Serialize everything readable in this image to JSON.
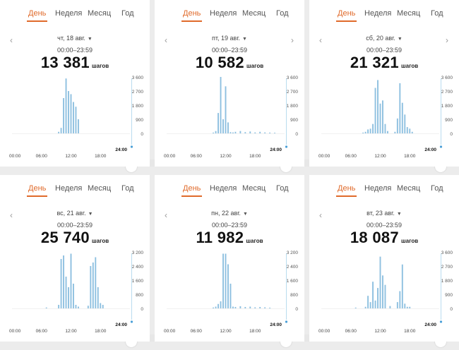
{
  "tabs": [
    "День",
    "Неделя",
    "Месяц",
    "Год"
  ],
  "active_tab": "День",
  "time_range": "00:00–23:59",
  "steps_unit": "шагов",
  "end_time_label": "24:00",
  "colors": {
    "accent": "#e06a2a",
    "bar": "#8ec0e0",
    "axis_line": "#b9dcef"
  },
  "icons": {
    "prev": "chevron-left-icon",
    "next": "chevron-right-icon",
    "dropdown": "caret-down-icon"
  },
  "panels": [
    {
      "date": "чт, 18 авг.",
      "steps": "13 381",
      "show_next": false,
      "chart_data": {
        "type": "bar",
        "x_tick_labels": [
          "00:00",
          "06:00",
          "12:00",
          "18:00"
        ],
        "y_tick_labels": [
          "3 600",
          "2 700",
          "1 800",
          "900",
          "0"
        ],
        "ylim": [
          0,
          3600
        ],
        "x": [
          9.5,
          10,
          10.5,
          11,
          11.5,
          12,
          12.5,
          13,
          13.5
        ],
        "values": [
          100,
          350,
          2250,
          3500,
          2700,
          2500,
          2000,
          1700,
          900
        ]
      }
    },
    {
      "date": "пт, 19 авг.",
      "steps": "10 582",
      "show_next": true,
      "chart_data": {
        "type": "bar",
        "x_tick_labels": [
          "00:00",
          "06:00",
          "12:00",
          "18:00"
        ],
        "y_tick_labels": [
          "3 600",
          "2 700",
          "1 800",
          "900",
          "0"
        ],
        "ylim": [
          0,
          3600
        ],
        "x": [
          9.5,
          10,
          10.5,
          11,
          11.5,
          12,
          12.5,
          13,
          13.5,
          14,
          15,
          16,
          17,
          18,
          19,
          20,
          21,
          22
        ],
        "values": [
          50,
          150,
          1300,
          3600,
          900,
          3000,
          700,
          80,
          60,
          100,
          150,
          80,
          120,
          60,
          100,
          60,
          50,
          40
        ]
      }
    },
    {
      "date": "сб, 20 авг.",
      "steps": "21 321",
      "show_next": true,
      "chart_data": {
        "type": "bar",
        "x_tick_labels": [
          "00:00",
          "06:00",
          "12:00",
          "18:00"
        ],
        "y_tick_labels": [
          "3 600",
          "2 700",
          "1 800",
          "900",
          "0"
        ],
        "ylim": [
          0,
          3600
        ],
        "x": [
          8.5,
          9,
          9.5,
          10,
          10.5,
          11,
          11.5,
          12,
          12.5,
          13,
          13.5,
          15,
          15.5,
          16,
          16.5,
          17,
          17.5,
          18,
          18.5
        ],
        "values": [
          50,
          100,
          250,
          300,
          600,
          2900,
          3400,
          1900,
          2100,
          600,
          150,
          100,
          950,
          3200,
          1950,
          1200,
          400,
          300,
          100
        ]
      }
    },
    {
      "date": "вс, 21 авг.",
      "steps": "25 740",
      "show_next": false,
      "chart_data": {
        "type": "bar",
        "x_tick_labels": [
          "00:00",
          "06:00",
          "12:00",
          "18:00"
        ],
        "y_tick_labels": [
          "3 200",
          "2 400",
          "1 600",
          "800",
          "0"
        ],
        "ylim": [
          0,
          3200
        ],
        "x": [
          7,
          9.5,
          10,
          10.5,
          11,
          11.5,
          12,
          12.5,
          13,
          13.5,
          15.5,
          16,
          16.5,
          17,
          17.5,
          18,
          18.5
        ],
        "values": [
          50,
          200,
          2800,
          3000,
          1800,
          1200,
          3100,
          1400,
          200,
          100,
          150,
          2400,
          2600,
          2900,
          1200,
          300,
          200
        ]
      }
    },
    {
      "date": "пн, 22 авг.",
      "steps": "11 982",
      "show_next": false,
      "chart_data": {
        "type": "bar",
        "x_tick_labels": [
          "00:00",
          "06:00",
          "12:00",
          "18:00"
        ],
        "y_tick_labels": [
          "3 200",
          "2 400",
          "1 600",
          "800",
          "0"
        ],
        "ylim": [
          0,
          3200
        ],
        "x": [
          9.5,
          10,
          10.5,
          11,
          11.5,
          12,
          12.5,
          13,
          13.5,
          14,
          15,
          16,
          17,
          18,
          19,
          20,
          21
        ],
        "values": [
          50,
          100,
          250,
          400,
          3100,
          3100,
          2500,
          1400,
          100,
          80,
          120,
          80,
          100,
          60,
          80,
          60,
          40
        ]
      }
    },
    {
      "date": "вт, 23 авг.",
      "steps": "18 087",
      "show_next": false,
      "chart_data": {
        "type": "bar",
        "x_tick_labels": [
          "00:00",
          "06:00",
          "12:00",
          "18:00"
        ],
        "y_tick_labels": [
          "3 600",
          "2 700",
          "1 800",
          "900",
          "0"
        ],
        "ylim": [
          0,
          3600
        ],
        "x": [
          7,
          9,
          9.5,
          10,
          10.5,
          11,
          11.5,
          12,
          12.5,
          13,
          14,
          15.5,
          16,
          16.5,
          17,
          17.5,
          18
        ],
        "values": [
          50,
          100,
          800,
          400,
          1700,
          500,
          1300,
          3300,
          2100,
          1500,
          150,
          400,
          1100,
          2800,
          300,
          100,
          100
        ]
      }
    }
  ]
}
